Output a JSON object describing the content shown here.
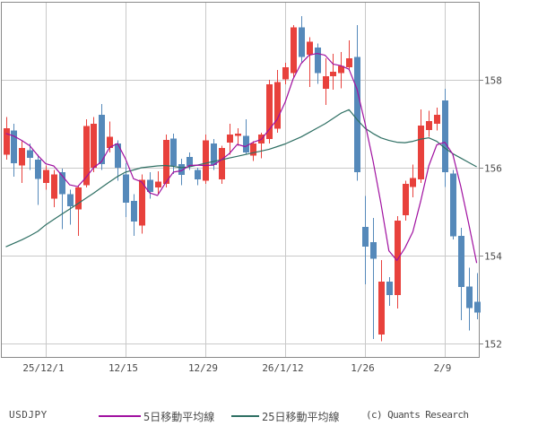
{
  "pair": "USDJPY",
  "copyright": "(c) Quants Research",
  "legend": {
    "items": [
      {
        "label": "5日移動平均線",
        "color": "#a010a0"
      },
      {
        "label": "25日移動平均線",
        "color": "#2e6f63"
      }
    ]
  },
  "chart_data": {
    "type": "candlestick",
    "title": "USDJPY daily candlestick chart with moving averages",
    "up_color": "#e8413c",
    "down_color": "#5589ba",
    "grid": true,
    "ylim": [
      151.7,
      159.6
    ],
    "y_ticks": [
      158,
      156,
      154,
      152
    ],
    "x_tick_labels": [
      {
        "index": 5,
        "label": "25/12/1"
      },
      {
        "index": 15,
        "label": "12/15"
      },
      {
        "index": 25,
        "label": "12/29"
      },
      {
        "index": 35,
        "label": "26/1/12"
      },
      {
        "index": 45,
        "label": "1/26"
      },
      {
        "index": 55,
        "label": "2/9"
      }
    ],
    "ohlc": [
      [
        156.3,
        157.15,
        156.18,
        156.9
      ],
      [
        156.85,
        157.0,
        155.8,
        156.1
      ],
      [
        156.05,
        156.6,
        155.65,
        156.45
      ],
      [
        156.4,
        156.55,
        155.95,
        156.22
      ],
      [
        156.18,
        156.3,
        155.15,
        155.75
      ],
      [
        155.65,
        156.05,
        155.5,
        155.95
      ],
      [
        155.3,
        155.95,
        155.1,
        155.85
      ],
      [
        155.9,
        155.98,
        154.6,
        155.4
      ],
      [
        155.4,
        155.5,
        154.7,
        155.12
      ],
      [
        155.05,
        155.6,
        154.45,
        155.55
      ],
      [
        155.6,
        157.1,
        155.55,
        156.95
      ],
      [
        156.0,
        157.15,
        155.9,
        157.0
      ],
      [
        157.2,
        157.45,
        155.95,
        156.08
      ],
      [
        156.45,
        157.05,
        156.35,
        156.7
      ],
      [
        156.55,
        156.62,
        155.7,
        156.0
      ],
      [
        155.85,
        156.1,
        154.88,
        155.2
      ],
      [
        155.25,
        155.4,
        154.45,
        154.78
      ],
      [
        154.68,
        155.85,
        154.5,
        155.72
      ],
      [
        155.72,
        155.9,
        155.3,
        155.45
      ],
      [
        155.55,
        155.92,
        155.4,
        155.68
      ],
      [
        155.63,
        156.76,
        155.55,
        156.63
      ],
      [
        156.66,
        156.78,
        155.86,
        156.04
      ],
      [
        156.08,
        156.2,
        155.6,
        155.84
      ],
      [
        156.24,
        156.35,
        155.95,
        156.04
      ],
      [
        155.95,
        156.0,
        155.6,
        155.73
      ],
      [
        155.7,
        156.76,
        155.63,
        156.62
      ],
      [
        156.55,
        156.65,
        155.95,
        156.06
      ],
      [
        155.73,
        156.5,
        155.63,
        156.45
      ],
      [
        156.57,
        157.0,
        156.3,
        156.76
      ],
      [
        156.72,
        156.9,
        156.5,
        156.78
      ],
      [
        156.72,
        157.1,
        156.3,
        156.35
      ],
      [
        156.28,
        156.6,
        156.15,
        156.55
      ],
      [
        156.55,
        156.8,
        156.21,
        156.76
      ],
      [
        156.65,
        158.0,
        156.55,
        157.9
      ],
      [
        156.89,
        158.22,
        156.8,
        157.95
      ],
      [
        158.01,
        158.39,
        157.9,
        158.29
      ],
      [
        158.15,
        159.24,
        158.04,
        159.19
      ],
      [
        159.19,
        159.45,
        158.4,
        158.52
      ],
      [
        158.57,
        158.97,
        157.84,
        158.87
      ],
      [
        158.73,
        158.83,
        157.91,
        158.15
      ],
      [
        157.8,
        158.49,
        157.43,
        158.08
      ],
      [
        158.08,
        158.59,
        157.78,
        158.18
      ],
      [
        158.15,
        158.63,
        157.81,
        158.32
      ],
      [
        158.29,
        158.9,
        158.2,
        158.49
      ],
      [
        158.52,
        159.24,
        155.7,
        155.9
      ],
      [
        154.65,
        155.36,
        153.35,
        154.2
      ],
      [
        154.31,
        154.86,
        152.1,
        153.93
      ],
      [
        152.2,
        153.9,
        152.05,
        153.41
      ],
      [
        153.41,
        153.51,
        152.86,
        153.1
      ],
      [
        153.1,
        154.9,
        152.8,
        154.8
      ],
      [
        154.92,
        155.7,
        154.8,
        155.63
      ],
      [
        155.56,
        156.07,
        155.33,
        155.77
      ],
      [
        155.73,
        157.33,
        155.65,
        156.96
      ],
      [
        156.86,
        157.3,
        156.7,
        157.06
      ],
      [
        157.0,
        157.37,
        156.85,
        157.2
      ],
      [
        157.53,
        157.8,
        155.56,
        155.9
      ],
      [
        155.87,
        155.95,
        154.37,
        154.44
      ],
      [
        154.45,
        154.63,
        152.53,
        153.29
      ],
      [
        153.3,
        153.72,
        152.3,
        152.81
      ],
      [
        152.95,
        153.6,
        152.55,
        152.7
      ]
    ],
    "series": [
      {
        "name": "5日移動平均線",
        "color": "#a010a0",
        "values": [
          156.78,
          156.72,
          156.62,
          156.5,
          156.28,
          156.09,
          156.04,
          155.83,
          155.61,
          155.57,
          155.77,
          156.0,
          156.14,
          156.46,
          156.55,
          156.2,
          155.75,
          155.68,
          155.43,
          155.37,
          155.65,
          155.9,
          155.93,
          156.05,
          156.06,
          156.05,
          156.06,
          156.18,
          156.32,
          156.53,
          156.48,
          156.58,
          156.64,
          156.87,
          157.1,
          157.49,
          158.02,
          158.37,
          158.56,
          158.6,
          158.56,
          158.36,
          158.32,
          158.24,
          157.79,
          157.02,
          156.17,
          155.19,
          154.11,
          153.89,
          154.17,
          154.54,
          155.25,
          156.04,
          156.52,
          156.58,
          156.31,
          155.58,
          154.73,
          153.83
        ]
      },
      {
        "name": "25日移動平均線",
        "color": "#2e6f63",
        "values": [
          154.2,
          154.28,
          154.36,
          154.45,
          154.55,
          154.7,
          154.82,
          154.94,
          155.06,
          155.18,
          155.3,
          155.42,
          155.55,
          155.68,
          155.8,
          155.9,
          155.95,
          156.0,
          156.02,
          156.04,
          156.05,
          156.03,
          156.0,
          156.02,
          156.06,
          156.1,
          156.14,
          156.18,
          156.22,
          156.26,
          156.3,
          156.34,
          156.38,
          156.42,
          156.48,
          156.54,
          156.62,
          156.7,
          156.8,
          156.9,
          157.0,
          157.12,
          157.24,
          157.32,
          157.1,
          156.9,
          156.78,
          156.68,
          156.62,
          156.58,
          156.57,
          156.6,
          156.65,
          156.68,
          156.6,
          156.45,
          156.32,
          156.22,
          156.12,
          156.02
        ]
      }
    ]
  }
}
